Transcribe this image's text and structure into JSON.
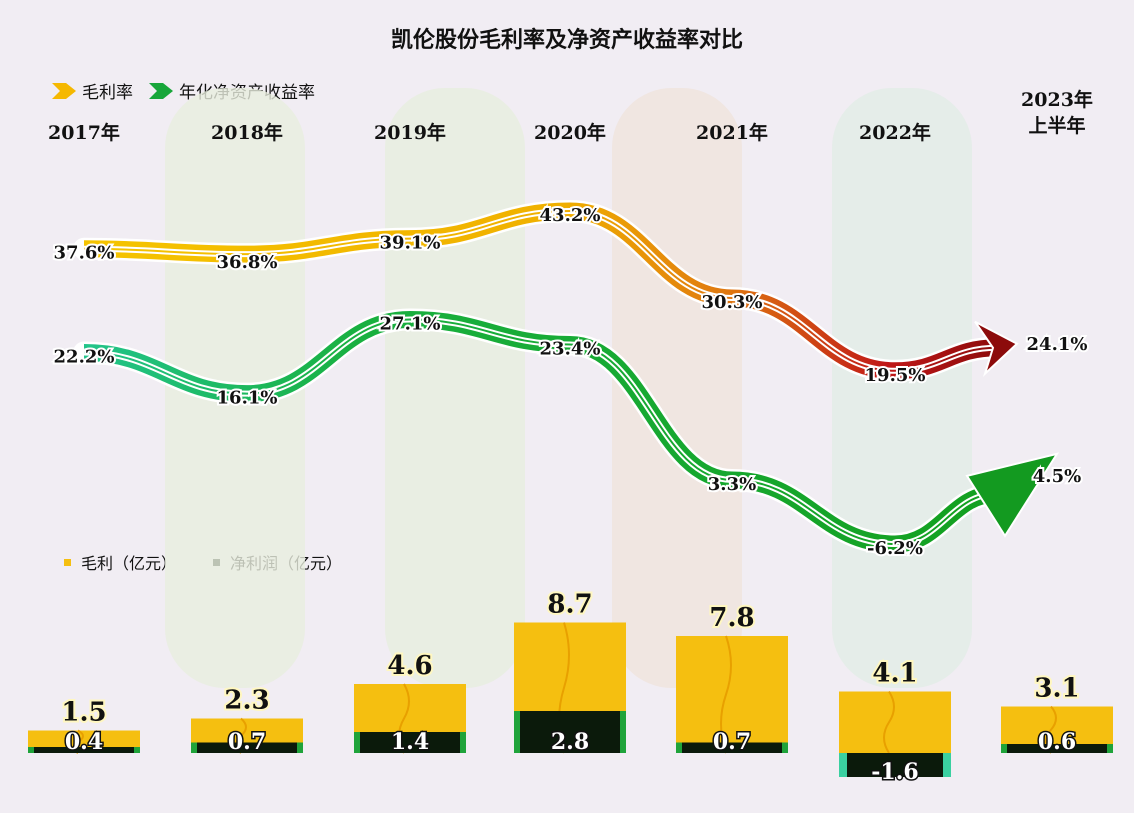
{
  "chart_data": {
    "title": "凯伦股份毛利率及净资产收益率对比",
    "categories": [
      "2017年",
      "2018年",
      "2019年",
      "2020年",
      "2021年",
      "2022年",
      "2023年\n上半年"
    ],
    "line_chart": {
      "type": "line",
      "series": [
        {
          "name": "毛利率",
          "values": [
            37.6,
            36.8,
            39.1,
            43.2,
            30.3,
            19.5,
            24.1
          ],
          "labels": [
            "37.6%",
            "36.8%",
            "39.1%",
            "43.2%",
            "30.3%",
            "19.5%",
            "24.1%"
          ],
          "color": "#f5b800"
        },
        {
          "name": "年化净资产收益率",
          "values": [
            22.2,
            16.1,
            27.1,
            23.4,
            3.3,
            -6.2,
            4.5
          ],
          "labels": [
            "22.2%",
            "16.1%",
            "27.1%",
            "23.4%",
            "3.3%",
            "-6.2%",
            "4.5%"
          ],
          "color": "#18a63a"
        }
      ]
    },
    "bar_chart": {
      "type": "bar",
      "series": [
        {
          "name": "毛利（亿元）",
          "values": [
            1.5,
            2.3,
            4.6,
            8.7,
            7.8,
            4.1,
            3.1
          ],
          "labels": [
            "1.5",
            "2.3",
            "4.6",
            "8.7",
            "7.8",
            "4.1",
            "3.1"
          ],
          "color": "#f5bf10"
        },
        {
          "name": "净利润（亿元）",
          "values": [
            0.4,
            0.7,
            1.4,
            2.8,
            0.7,
            -1.6,
            0.6
          ],
          "labels": [
            "0.4",
            "0.7",
            "1.4",
            "2.8",
            "0.7",
            "-1.6",
            "0.6"
          ],
          "color": "#0b1a0b"
        }
      ]
    },
    "colors": {
      "gross_line": "#f5b800",
      "gross_line_end": "#8c0b0b",
      "roe_line": "#18a63a",
      "bar_gross": "#f5bf10",
      "bar_net": "#0b1a0b"
    }
  }
}
